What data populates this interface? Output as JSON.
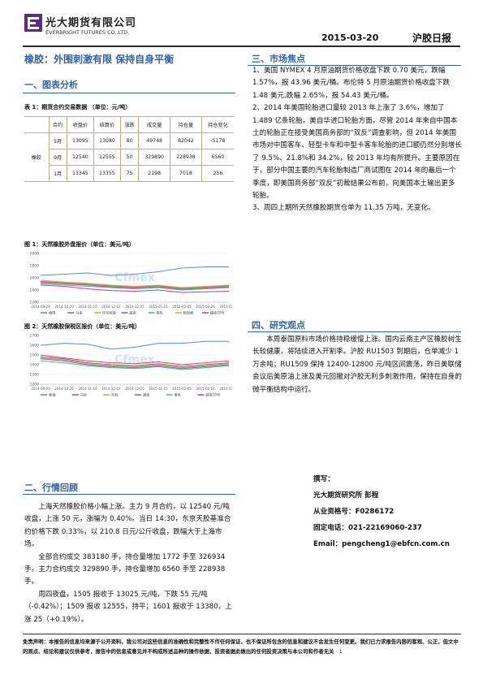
{
  "header": {
    "company_cn": "光大期货有限公司",
    "company_en": "EVERBRIGHT FUTURES CO.,LTD.",
    "date": "2015-03-20",
    "report_name": "沪胶日报"
  },
  "title": "橡胶：外围刺激有限 保持自身平衡",
  "sections": {
    "s1": "一、图表分析",
    "s2": "二、行情回顾",
    "s3": "三、市场焦点",
    "s4": "四、研究观点"
  },
  "table": {
    "caption": "表 1：期货合约交易数据 （单位：元/吨）",
    "headers": [
      "合约",
      "收盘价",
      "结算价",
      "涨跌",
      "成交量",
      "持仓量",
      "持仓变化"
    ],
    "product": "橡胶",
    "rows": [
      [
        "5月",
        "13095",
        "13080",
        "80",
        "49748",
        "82042",
        "-5178"
      ],
      [
        "9月",
        "12540",
        "12555",
        "50",
        "329890",
        "228938",
        "6560"
      ],
      [
        "1月",
        "13345",
        "13355",
        "75",
        "2198",
        "7018",
        "256"
      ]
    ]
  },
  "chart1": {
    "caption": "图 1：天然橡胶外盘报价（单位：美元/吨）",
    "watermark": "Cfmex",
    "legend": [
      "泰国",
      "马来",
      "印尼标胶",
      "越南",
      "胶乳",
      "新加坡",
      "越南10号"
    ],
    "colors": [
      "#5b8bd0",
      "#c0504d",
      "#9bbb59",
      "#8064a2",
      "#4bacc6",
      "#f79646",
      "#e0367a"
    ]
  },
  "chart2": {
    "caption": "图 2：天然橡胶保税区报价（单位：美元/吨）",
    "watermark": "Cfmex",
    "legend": [
      "泰烟",
      "马标",
      "印标",
      "越南",
      "泰乳",
      "越南10号"
    ],
    "colors": [
      "#5b8bd0",
      "#c0504d",
      "#9bbb59",
      "#8064a2",
      "#4bacc6",
      "#e0367a"
    ]
  },
  "chart_data": [
    {
      "type": "line",
      "title": "图 1：天然橡胶外盘报价（单位：美元/吨）",
      "ylim": [
        1200,
        2000
      ],
      "yticks": [
        "2000",
        "1800",
        "1600",
        "1400",
        "1200"
      ],
      "xticks": [
        "2014-09-29",
        "2014-10-20",
        "2014-11-10",
        "2014-12-01",
        "2014-12-25",
        "2015-01-15",
        "2015-02-05",
        "2015-02-26",
        "2015-03-16"
      ],
      "x": [
        "2014-09-29",
        "2014-10-20",
        "2014-11-10",
        "2014-12-01",
        "2014-12-25",
        "2015-01-15",
        "2015-02-05",
        "2015-02-26",
        "2015-03-16"
      ],
      "series": [
        {
          "name": "泰国",
          "values": [
            1640,
            1660,
            1680,
            1640,
            1660,
            1700,
            1760,
            1780,
            1780
          ]
        },
        {
          "name": "马来",
          "values": [
            1540,
            1520,
            1500,
            1470,
            1450,
            1470,
            1430,
            1450,
            1470
          ]
        },
        {
          "name": "印尼标胶",
          "values": [
            1530,
            1510,
            1490,
            1460,
            1440,
            1460,
            1420,
            1440,
            1460
          ]
        },
        {
          "name": "越南",
          "values": [
            1520,
            1500,
            1480,
            1450,
            1430,
            1450,
            1410,
            1430,
            1450
          ]
        },
        {
          "name": "胶乳",
          "values": [
            1500,
            1480,
            1460,
            1440,
            1420,
            1440,
            1400,
            1420,
            1440
          ]
        },
        {
          "name": "新加坡",
          "values": [
            1560,
            1530,
            1510,
            1480,
            1460,
            1480,
            1440,
            1460,
            1480
          ]
        },
        {
          "name": "越南10号",
          "values": [
            1480,
            1460,
            1420,
            1390,
            1380,
            1400,
            1360,
            1370,
            1380
          ]
        }
      ]
    },
    {
      "type": "line",
      "title": "图 2：天然橡胶保税区报价（单位：美元/吨）",
      "ylim": [
        1200,
        1700
      ],
      "yticks": [
        "1700",
        "1600",
        "1500",
        "1400",
        "1300",
        "1200"
      ],
      "xticks": [
        "2014-09-29",
        "2014-10-20",
        "2014-11-10",
        "2014-12-01",
        "2014-12-25",
        "2015-01-15",
        "2015-02-05",
        "2015-02-26",
        "2015-03-16"
      ],
      "x": [
        "2014-09-29",
        "2014-10-20",
        "2014-11-10",
        "2014-12-01",
        "2014-12-25",
        "2015-01-15",
        "2015-02-05",
        "2015-02-26",
        "2015-03-16"
      ],
      "series": [
        {
          "name": "泰烟",
          "values": [
            1600,
            1620,
            1610,
            1560,
            1580,
            1620,
            1620,
            1640,
            1640
          ]
        },
        {
          "name": "马标",
          "values": [
            1480,
            1460,
            1420,
            1400,
            1390,
            1410,
            1380,
            1400,
            1420
          ]
        },
        {
          "name": "印标",
          "values": [
            1470,
            1450,
            1410,
            1390,
            1380,
            1400,
            1370,
            1390,
            1410
          ]
        },
        {
          "name": "越南",
          "values": [
            1460,
            1440,
            1400,
            1380,
            1370,
            1390,
            1360,
            1380,
            1400
          ]
        },
        {
          "name": "泰乳",
          "values": [
            1440,
            1420,
            1390,
            1370,
            1360,
            1380,
            1350,
            1370,
            1390
          ]
        },
        {
          "name": "越南10号",
          "values": [
            1500,
            1470,
            1440,
            1420,
            1410,
            1430,
            1400,
            1420,
            1440
          ]
        }
      ]
    }
  ],
  "review": {
    "p1": "上海天然橡胶价格小幅上涨。主力 9 月合约，以 12540 元/吨收盘，上涨 50 元，涨幅为 0.40%。当日 14:30，东京天胶基准合约价格下跌 0.33%，以 210.8 日元/公斤收盘，跌幅大于上海市场。",
    "p2": "全部合约成交 383180 手，持仓量增加 1772 手至 326934 手。主力合约成交 329890 手，持仓量增加 6560 手至 228938 手。",
    "p3": "周四夜盘，1505 报收于 13025 元/吨，下跌 55 元/吨（-0.42%）；1509 报收 12555，持平；1601 报收于 13380，上涨 25（+0.19%）。"
  },
  "focus": {
    "p1": "1、美国 NYMEX 4 月原油期货价格收盘下跌 0.70 美元，跌幅 1.57%，报 43.96 美元/桶。布伦特 5 月原油期货价格收盘下跌 1.48 美元,跌幅 2.65%，报 54.43 美元/桶。",
    "p2": "2、2014 年美国轮胎进口量较 2013 年上涨了 3.6%，增加了 1.489 亿条轮胎。美自华进口轮胎方面，尽管 2014 年来自中国本土的轮胎正在接受美国商务部的“双反”调查影响，但 2014 年美国市场对中国客车、轻型卡车和中型卡客车轮胎的进口额仍然分别增长了 9.5%、21.8%和 34.2%，较 2013 年均有所提升。主要原因在于，部分中国主要的汽车轮胎制造厂商试图在 2014 年的最后一个季度，即美国商务部“双反”初裁结果公布前，向美国本土输出更多轮胎。",
    "p3": "3、周四上期所天然橡胶期货仓单为 11.35 万吨，无变化。"
  },
  "view": {
    "p1": "本周泰国原料市场价格持稳缓慢上涨。国内云南主产区橡胶树生长较健康，将陆续进入开割季。沪胶 RU1503 到期后，仓单减少 1 万余吨；RU1509 保持 12400-12800 元/吨区间震荡，昨日美联储会议后美原油上涨及美元回撤对沪胶无利多刺激作用，保持在自身的微平衡结构中运行。"
  },
  "author": {
    "label": "撰写：",
    "name": "光大期货研究所 彭程",
    "license": "从业资格号：F0286172",
    "phone": "固定电话：021-22169060-237",
    "email": "Email：pengcheng1@ebfcn.com.cn"
  },
  "footer": {
    "disclaimer": "免责声明：本报告的信息均来源于公开资料，我公司对这些信息的准确性和完整性不作任何保证，也不保证所包含的信息和建议不会发生任何变更。我们已力求报告内容的客观、公正，但文中的观点、结论和建议仅供参考，报告中的信息或意见并不构成所述品种的操作依据，投资者据此做出的任何投资决策与本公司和作者无关",
    "page": "1"
  }
}
